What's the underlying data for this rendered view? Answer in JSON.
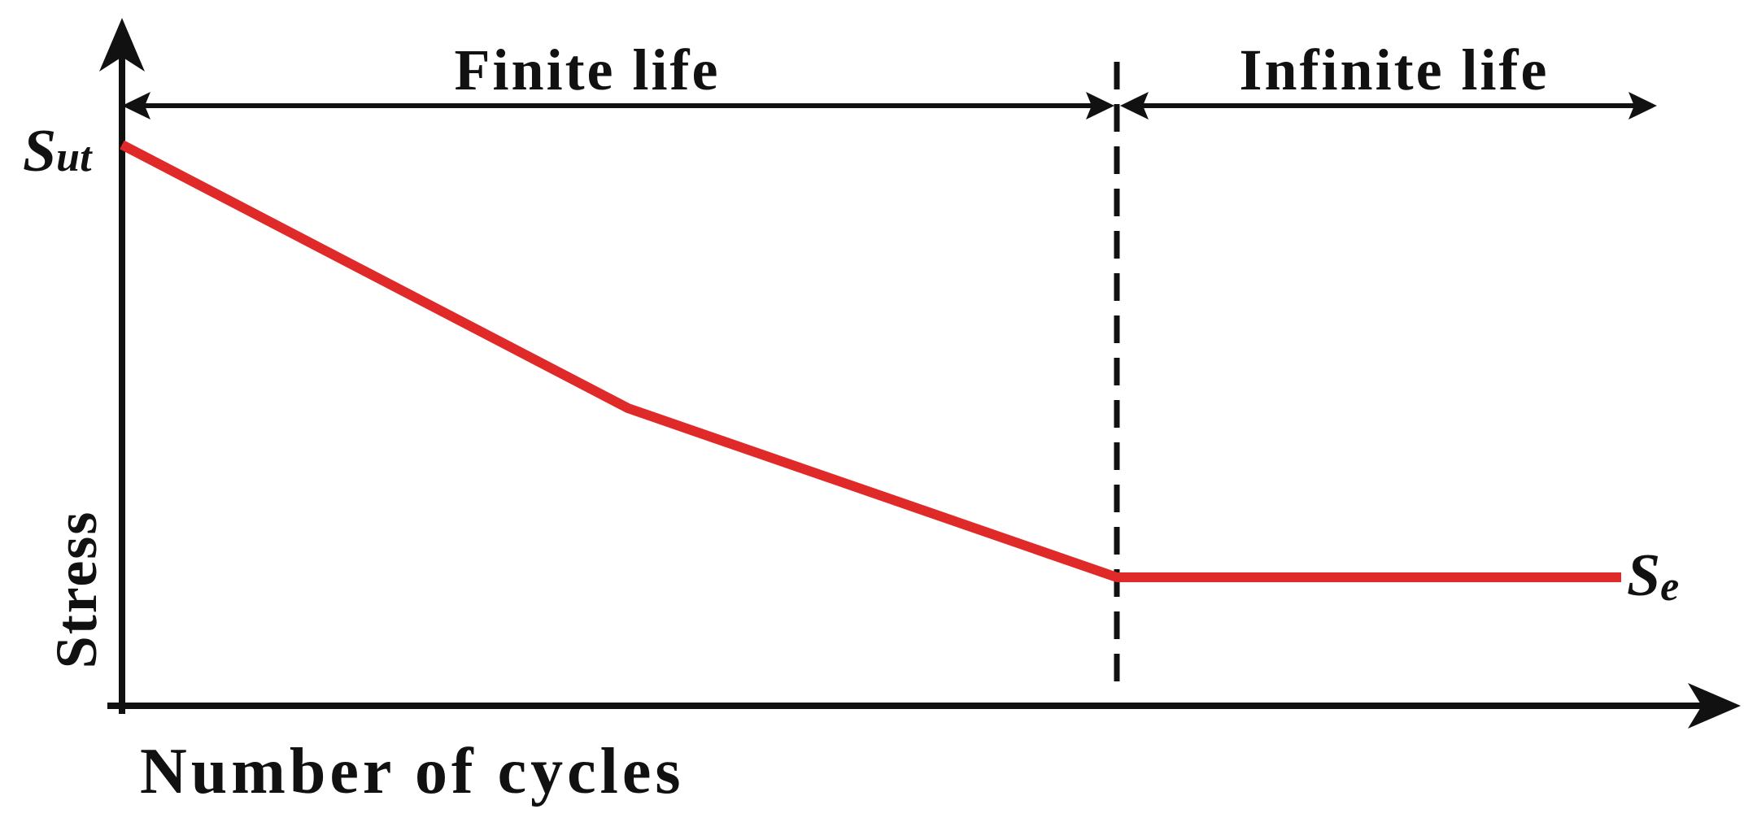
{
  "labels": {
    "finite_life": "Finite life",
    "infinite_life": "Infinite life",
    "y_axis": "Stress",
    "x_axis": "Number of cycles",
    "sut_main": "S",
    "sut_sub": "ut",
    "se_main": "S",
    "se_sub": "e"
  },
  "colors": {
    "curve": "#e02a2a",
    "axes": "#111111"
  }
}
